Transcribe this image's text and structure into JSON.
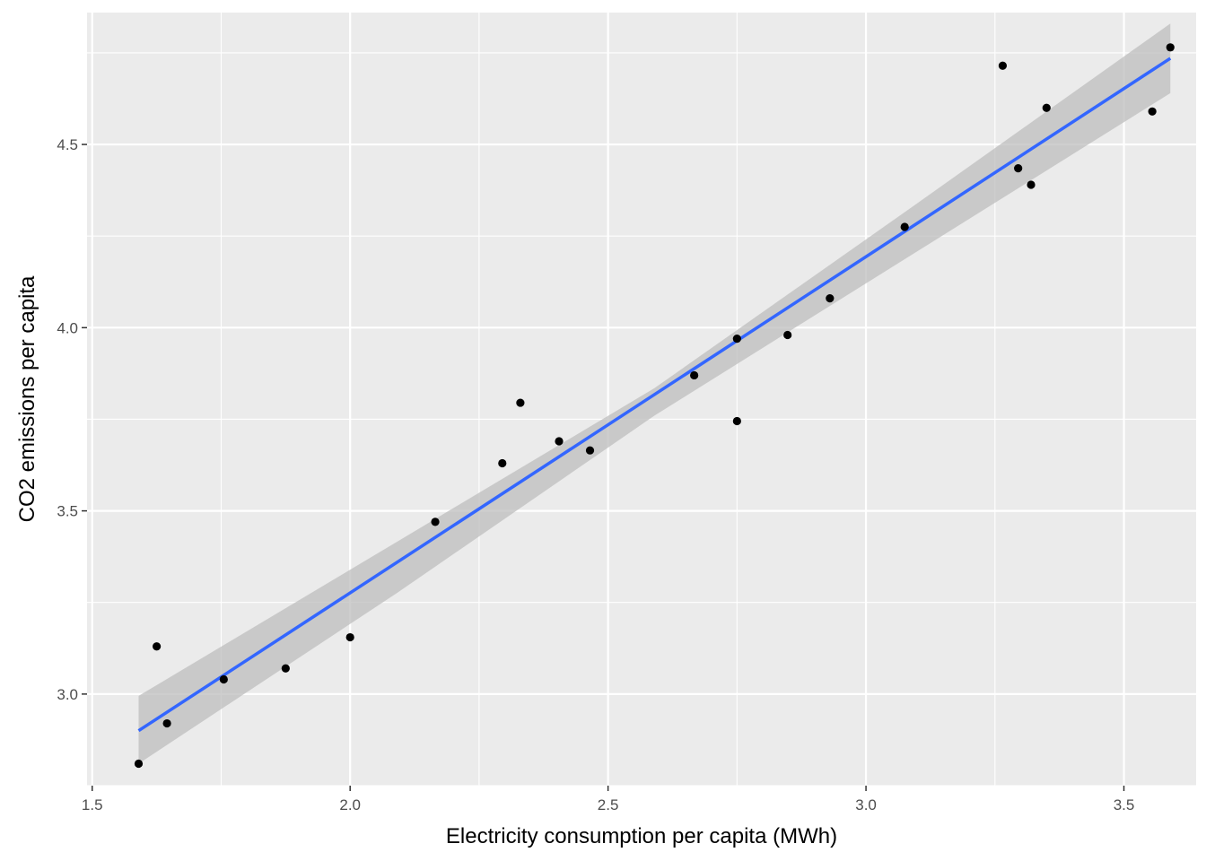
{
  "chart_data": {
    "type": "scatter",
    "xlabel": "Electricity consumption per capita (MWh)",
    "ylabel": "CO2 emissions per capita",
    "xlim": [
      1.49,
      3.64
    ],
    "ylim": [
      2.75,
      4.86
    ],
    "x_ticks": [
      1.5,
      2.0,
      2.5,
      3.0,
      3.5
    ],
    "x_tick_labels": [
      "1.5",
      "2.0",
      "2.5",
      "3.0",
      "3.5"
    ],
    "y_ticks": [
      3.0,
      3.5,
      4.0,
      4.5
    ],
    "y_tick_labels": [
      "3.0",
      "3.5",
      "4.0",
      "4.5"
    ],
    "grid": true,
    "points": [
      {
        "x": 1.59,
        "y": 2.81
      },
      {
        "x": 1.625,
        "y": 3.13
      },
      {
        "x": 1.645,
        "y": 2.92
      },
      {
        "x": 1.755,
        "y": 3.04
      },
      {
        "x": 1.875,
        "y": 3.07
      },
      {
        "x": 2.0,
        "y": 3.155
      },
      {
        "x": 2.165,
        "y": 3.47
      },
      {
        "x": 2.295,
        "y": 3.63
      },
      {
        "x": 2.33,
        "y": 3.795
      },
      {
        "x": 2.405,
        "y": 3.69
      },
      {
        "x": 2.465,
        "y": 3.665
      },
      {
        "x": 2.667,
        "y": 3.87
      },
      {
        "x": 2.75,
        "y": 3.97
      },
      {
        "x": 2.75,
        "y": 3.745
      },
      {
        "x": 2.848,
        "y": 3.98
      },
      {
        "x": 2.93,
        "y": 4.08
      },
      {
        "x": 3.075,
        "y": 4.275
      },
      {
        "x": 3.265,
        "y": 4.715
      },
      {
        "x": 3.295,
        "y": 4.435
      },
      {
        "x": 3.32,
        "y": 4.39
      },
      {
        "x": 3.35,
        "y": 4.6
      },
      {
        "x": 3.555,
        "y": 4.59
      },
      {
        "x": 3.59,
        "y": 4.765
      }
    ],
    "fit_line": {
      "x": [
        1.59,
        3.59
      ],
      "y": [
        2.9,
        4.735
      ]
    },
    "confidence_band": {
      "x": [
        1.59,
        2.09,
        2.59,
        3.09,
        3.59
      ],
      "lower": [
        2.81,
        3.275,
        3.76,
        4.2,
        4.64
      ],
      "upper": [
        2.995,
        3.415,
        3.835,
        4.33,
        4.83
      ]
    },
    "colors": {
      "panel": "#ebebeb",
      "grid_major": "#ffffff",
      "points": "#000000",
      "fit_line": "#3366ff",
      "band": "#bebebe"
    }
  }
}
